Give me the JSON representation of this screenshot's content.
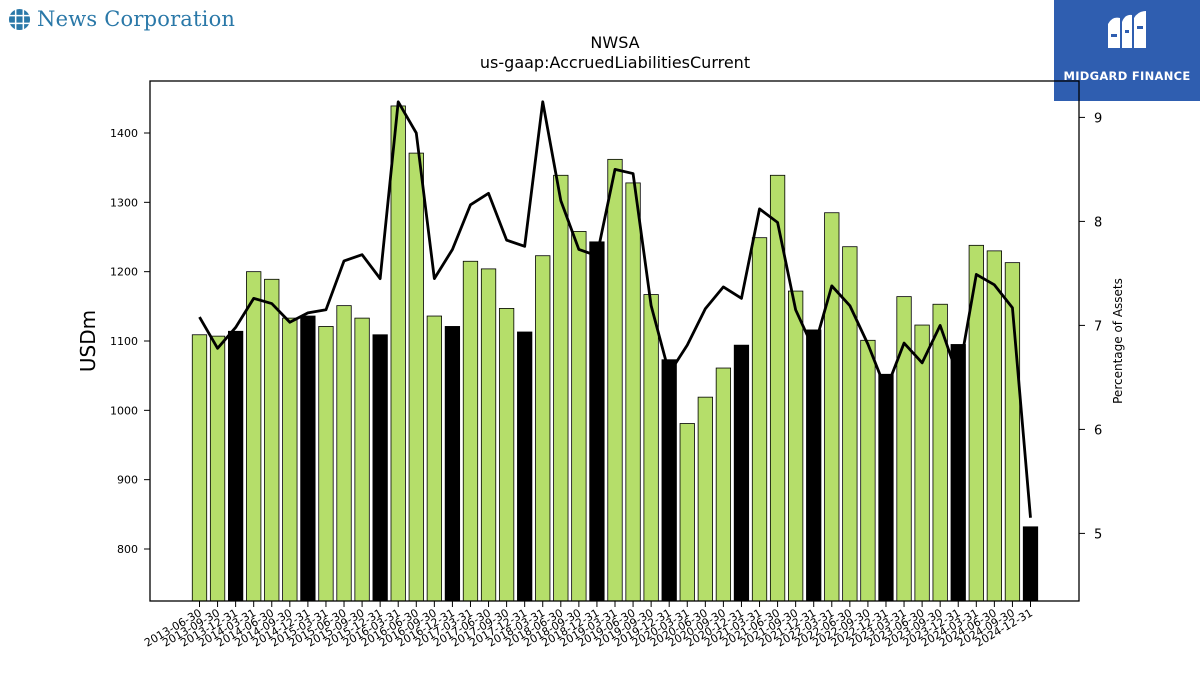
{
  "header": {
    "company_name": "News Corporation",
    "sponsor_name": "MIDGARD FINANCE"
  },
  "chart_data": {
    "type": "bar",
    "title": "NWSA",
    "subtitle": "us-gaap:AccruedLiabilitiesCurrent",
    "ylabel": "USDm",
    "y2label": "Percentage of Assets",
    "ylim": [
      725,
      1475
    ],
    "y2lim": [
      4.35,
      9.35
    ],
    "yticks": [
      800,
      900,
      1000,
      1100,
      1200,
      1300,
      1400
    ],
    "y2ticks": [
      5,
      6,
      7,
      8,
      9
    ],
    "colors": {
      "bar": "#b5de6a",
      "bar_highlight": "#000000",
      "line": "#000000"
    },
    "categories": [
      "2013-06-30",
      "2013-09-30",
      "2013-12-31",
      "2014-03-31",
      "2014-06-30",
      "2014-09-30",
      "2014-12-31",
      "2015-03-31",
      "2015-06-30",
      "2015-09-30",
      "2015-12-31",
      "2016-03-31",
      "2016-06-30",
      "2016-09-30",
      "2016-12-31",
      "2017-03-31",
      "2017-06-30",
      "2017-09-30",
      "2017-12-31",
      "2018-03-31",
      "2018-06-30",
      "2018-09-30",
      "2018-12-31",
      "2019-03-31",
      "2019-06-30",
      "2019-09-30",
      "2019-12-31",
      "2020-03-31",
      "2020-06-30",
      "2020-09-30",
      "2020-12-31",
      "2021-03-31",
      "2021-06-30",
      "2021-09-30",
      "2021-12-31",
      "2022-03-31",
      "2022-06-30",
      "2022-09-30",
      "2022-12-31",
      "2023-03-31",
      "2023-06-30",
      "2023-09-30",
      "2023-12-31",
      "2024-03-31",
      "2024-06-30",
      "2024-09-30",
      "2024-12-31"
    ],
    "series": [
      {
        "type": "bar",
        "axis": "left",
        "values": [
          1109,
          1107,
          1114,
          1200,
          1189,
          1133,
          1136,
          1121,
          1151,
          1133,
          1109,
          1439,
          1371,
          1136,
          1121,
          1215,
          1204,
          1147,
          1113,
          1223,
          1339,
          1258,
          1243,
          1362,
          1328,
          1167,
          1073,
          981,
          1019,
          1061,
          1094,
          1249,
          1339,
          1172,
          1116,
          1285,
          1236,
          1101,
          1052,
          1164,
          1123,
          1153,
          1095,
          1238,
          1230,
          1213,
          832
        ]
      },
      {
        "type": "line",
        "axis": "right",
        "values": [
          7.08,
          6.78,
          6.98,
          7.26,
          7.21,
          7.03,
          7.12,
          7.15,
          7.62,
          7.68,
          7.45,
          9.15,
          8.85,
          7.45,
          7.73,
          8.16,
          8.27,
          7.82,
          7.76,
          9.15,
          8.2,
          7.73,
          7.67,
          8.5,
          8.46,
          7.19,
          6.54,
          6.81,
          7.16,
          7.37,
          7.26,
          8.12,
          7.99,
          7.15,
          6.77,
          7.38,
          7.19,
          6.82,
          6.38,
          6.83,
          6.64,
          7.0,
          6.5,
          7.49,
          7.39,
          7.17,
          5.15
        ]
      }
    ],
    "highlight_indices": [
      2,
      6,
      10,
      14,
      18,
      22,
      26,
      30,
      34,
      38,
      42,
      46
    ],
    "grid": false,
    "legend": "none"
  }
}
